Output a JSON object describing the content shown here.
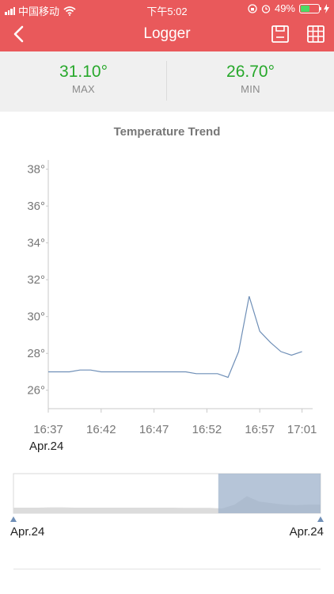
{
  "status_bar": {
    "carrier": "中国移动",
    "time": "下午5:02",
    "battery": "49%",
    "battery_level": 0.49
  },
  "nav": {
    "title": "Logger",
    "icons": [
      "back-chevron-icon",
      "save-icon",
      "table-icon"
    ]
  },
  "stats": {
    "max_value": "31.10°",
    "max_label": "MAX",
    "min_value": "26.70°",
    "min_label": "MIN"
  },
  "colors": {
    "header": "#e9595b",
    "stat_value": "#27a82b",
    "line": "#6f8fb7",
    "selection": "#9eb2cb"
  },
  "chart_data": {
    "type": "line",
    "title": "Temperature Trend",
    "ylim": [
      25,
      38.5
    ],
    "y_ticks": [
      "26°",
      "28°",
      "30°",
      "32°",
      "34°",
      "36°",
      "38°"
    ],
    "y_tick_values": [
      26,
      28,
      30,
      32,
      34,
      36,
      38
    ],
    "x_ticks": [
      "16:37",
      "16:42",
      "16:47",
      "16:52",
      "16:57",
      "17:01"
    ],
    "x_tick_values": [
      "16:37",
      "16:42",
      "16:47",
      "16:52",
      "16:57",
      "17:01"
    ],
    "xlim": [
      "16:37",
      "17:02"
    ],
    "date_label": "Apr.24",
    "series": [
      {
        "x": [
          "16:37",
          "16:39",
          "16:40",
          "16:41",
          "16:42",
          "16:44",
          "16:46",
          "16:48",
          "16:50",
          "16:51",
          "16:53",
          "16:54",
          "16:55",
          "16:56",
          "16:57",
          "16:58",
          "16:59",
          "17:00",
          "17:01"
        ],
        "y": [
          27.0,
          27.0,
          27.1,
          27.1,
          27.0,
          27.0,
          27.0,
          27.0,
          27.0,
          26.9,
          26.9,
          26.7,
          28.1,
          31.1,
          29.2,
          28.6,
          28.1,
          27.9,
          28.1
        ]
      }
    ],
    "grid": false,
    "legend": "none"
  },
  "range_selector": {
    "start_label": "Apr.24",
    "end_label": "Apr.24",
    "selection": [
      0.667,
      1.0
    ]
  }
}
